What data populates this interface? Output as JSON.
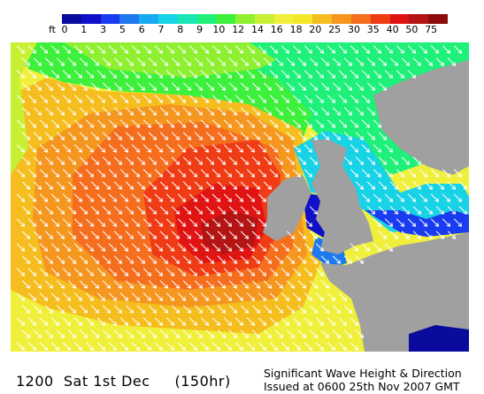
{
  "legend": {
    "unit": "ft",
    "bands": [
      {
        "label": "0",
        "color": "#0a0a9c"
      },
      {
        "label": "1",
        "color": "#1010c8"
      },
      {
        "label": "3",
        "color": "#1a3cf0"
      },
      {
        "label": "5",
        "color": "#1e78f0"
      },
      {
        "label": "6",
        "color": "#18aaf0"
      },
      {
        "label": "7",
        "color": "#18d2e6"
      },
      {
        "label": "8",
        "color": "#18e6b4"
      },
      {
        "label": "9",
        "color": "#1ef07a"
      },
      {
        "label": "10",
        "color": "#3cf03c"
      },
      {
        "label": "12",
        "color": "#8ff032"
      },
      {
        "label": "14",
        "color": "#c8f032"
      },
      {
        "label": "16",
        "color": "#f0f03c"
      },
      {
        "label": "18",
        "color": "#f5e628"
      },
      {
        "label": "20",
        "color": "#f5be1e"
      },
      {
        "label": "25",
        "color": "#f5961e"
      },
      {
        "label": "30",
        "color": "#f56e1e"
      },
      {
        "label": "35",
        "color": "#f03c14"
      },
      {
        "label": "40",
        "color": "#e11414"
      },
      {
        "label": "50",
        "color": "#b41414"
      },
      {
        "label": "75",
        "color": "#8c0a0a"
      }
    ]
  },
  "map": {
    "land_color": "#a0a0a0",
    "arrow_color": "#ffffff",
    "arrow_direction_deg": 135,
    "arrow_icon": "wave-direction-arrow"
  },
  "caption": {
    "time": "1200",
    "day": "Sat 1st Dec",
    "lead": "(150hr)",
    "title": "Significant Wave Height & Direction",
    "issued": "Issued at 0600 25th Nov 2007 GMT"
  }
}
